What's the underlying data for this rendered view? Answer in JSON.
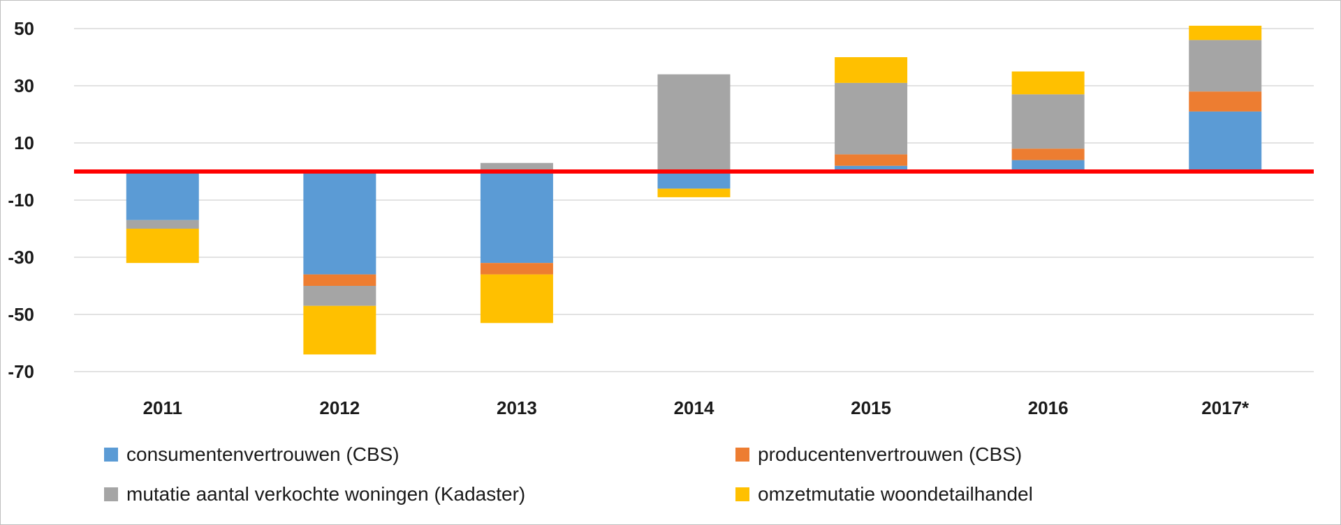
{
  "chart_data": {
    "type": "bar",
    "stacked": true,
    "title": "",
    "xlabel": "",
    "ylabel": "",
    "categories": [
      "2011",
      "2012",
      "2013",
      "2014",
      "2015",
      "2016",
      "2017*"
    ],
    "ylim": [
      -70,
      50
    ],
    "yticks": [
      50,
      30,
      10,
      -10,
      -30,
      -50,
      -70
    ],
    "ytick_labels": [
      "50",
      "30",
      "10",
      "-10",
      "-30",
      "-50",
      "-70"
    ],
    "grid": true,
    "reference_line": {
      "value": 0,
      "color": "#ff0000"
    },
    "legend_position": "bottom",
    "series": [
      {
        "name": "consumentenvertrouwen (CBS)",
        "color": "#5b9bd5",
        "values": [
          -17,
          -36,
          -32,
          -6,
          2,
          4,
          21
        ]
      },
      {
        "name": "producentenvertrouwen (CBS)",
        "color": "#ed7d31",
        "values": [
          0,
          -4,
          -4,
          0,
          4,
          4,
          7
        ]
      },
      {
        "name": "mutatie aantal verkochte woningen (Kadaster)",
        "color": "#a5a5a5",
        "values": [
          -3,
          -7,
          3,
          34,
          25,
          19,
          18
        ]
      },
      {
        "name": "omzetmutatie woondetailhandel",
        "color": "#ffc000",
        "values": [
          -12,
          -17,
          -17,
          -3,
          9,
          8,
          5
        ]
      }
    ]
  }
}
